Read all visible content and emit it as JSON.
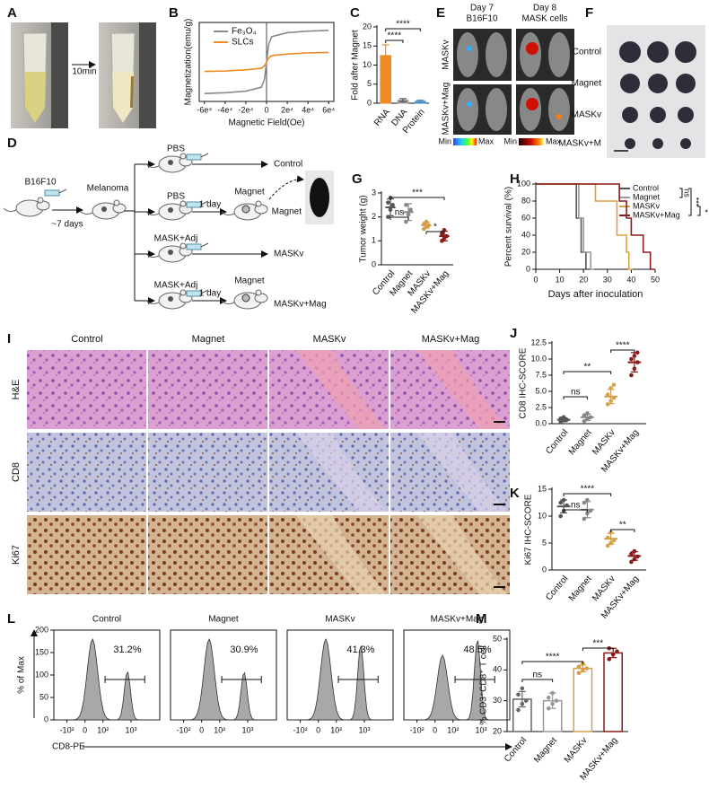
{
  "panel_letters": [
    "A",
    "B",
    "C",
    "D",
    "E",
    "F",
    "G",
    "H",
    "I",
    "J",
    "K",
    "L",
    "M"
  ],
  "panel_a": {
    "arrow_label": "10min"
  },
  "panel_d": {
    "start": "B16F10",
    "interval": "~7 days",
    "tumor": "Melanoma",
    "groups": [
      {
        "treatment": "PBS",
        "outcome": "Control"
      },
      {
        "treatment": "PBS",
        "delay": "1 day",
        "step": "Magnet",
        "outcome": "Magnet"
      },
      {
        "treatment": "MASK+Adj",
        "outcome": "MASKv"
      },
      {
        "treatment": "MASK+Adj",
        "delay": "1 day",
        "step": "Magnet",
        "outcome": "MASKv+Mag"
      }
    ]
  },
  "panel_e": {
    "columns": [
      [
        "Day 7",
        "B16F10"
      ],
      [
        "Day 8",
        "MASK cells"
      ]
    ],
    "rows": [
      "MASKv",
      "MASKv+Mag"
    ],
    "scale_labels": [
      "Min",
      "Max",
      "Min",
      "Max"
    ]
  },
  "panel_f": {
    "rows": [
      "Control",
      "Magnet",
      "MASKv",
      "MASKv+M"
    ]
  },
  "panel_i": {
    "columns": [
      "Control",
      "Magnet",
      "MASKv",
      "MASKv+Mag"
    ],
    "rows": [
      "H&E",
      "CD8",
      "Ki67"
    ]
  },
  "chart_data": [
    {
      "type": "line",
      "xlabel": "Magnetic Field(Oe)",
      "ylabel": "Magnetization(emu/g)",
      "legend": "upper left",
      "xlim": [
        -65000,
        65000
      ],
      "ylim": [
        -50,
        50
      ],
      "xticks": [
        {
          "value": -60000,
          "label": "-6e⁴"
        },
        {
          "value": -40000,
          "label": "-4e⁴"
        },
        {
          "value": -20000,
          "label": "-2e⁴"
        },
        0,
        {
          "value": 20000,
          "label": "2e⁴"
        },
        {
          "value": 40000,
          "label": "4e⁴"
        },
        {
          "value": 60000,
          "label": "6e⁴"
        }
      ],
      "x": [
        -60000,
        -40000,
        -20000,
        -5000,
        -2000,
        0,
        2000,
        5000,
        20000,
        40000,
        60000
      ],
      "series": [
        {
          "name": "Fe₃O₄",
          "color": "#8a8a8a",
          "values": [
            -40,
            -39,
            -37,
            -32,
            -22,
            0,
            22,
            32,
            37,
            39,
            40
          ]
        },
        {
          "name": "SLCs",
          "color": "#f08a24",
          "values": [
            -12,
            -11.5,
            -10,
            -8,
            -5,
            0,
            5,
            8,
            10,
            11.5,
            12
          ]
        }
      ]
    },
    {
      "type": "bar",
      "ylabel": "Fold after Magnet",
      "categories": [
        "RNA",
        "DNA",
        "Protein"
      ],
      "values": [
        12.5,
        0.8,
        0.5
      ],
      "errors": [
        2.8,
        0.4,
        0.3
      ],
      "colors": [
        "#f08a24",
        "#999999",
        "#4a90c8"
      ],
      "ylim": [
        0,
        20
      ],
      "yticks": [
        0,
        5,
        10,
        15,
        20
      ],
      "significance": [
        "****",
        "****"
      ]
    },
    {
      "type": "dot",
      "ylabel": "Tumor weight (g)",
      "categories": [
        "Control",
        "Magnet",
        "MASKv",
        "MASKv+Mag"
      ],
      "values": [
        2.4,
        2.2,
        1.65,
        1.2
      ],
      "errors": [
        0.35,
        0.35,
        0.12,
        0.2
      ],
      "points": [
        [
          2.0,
          2.3,
          2.5,
          2.6,
          2.8
        ],
        [
          1.8,
          2.1,
          2.3,
          2.5
        ],
        [
          1.5,
          1.6,
          1.65,
          1.7,
          1.8
        ],
        [
          1.0,
          1.1,
          1.2,
          1.3,
          1.45
        ]
      ],
      "colors": [
        "#555555",
        "#888888",
        "#d4a04a",
        "#8b1a1a"
      ],
      "ylim": [
        0,
        3
      ],
      "yticks": [
        0,
        1,
        2,
        3
      ],
      "significance": [
        "ns",
        "***",
        "*"
      ]
    },
    {
      "type": "survival",
      "xlabel": "Days after inoculation",
      "ylabel": "Percent survival (%)",
      "legend": "upper right",
      "xlim": [
        0,
        50
      ],
      "xticks": [
        0,
        10,
        20,
        30,
        40,
        50
      ],
      "ylim": [
        0,
        100
      ],
      "yticks": [
        0,
        20,
        40,
        60,
        80,
        100
      ],
      "series": [
        {
          "name": "Control",
          "color": "#555555",
          "x": [
            0,
            17,
            19,
            21
          ],
          "values": [
            100,
            60,
            20,
            0
          ]
        },
        {
          "name": "Magnet",
          "color": "#999999",
          "x": [
            0,
            18,
            20,
            23
          ],
          "values": [
            100,
            60,
            20,
            0
          ]
        },
        {
          "name": "MASKv",
          "color": "#e0a040",
          "x": [
            0,
            25,
            34,
            38,
            39
          ],
          "values": [
            100,
            80,
            40,
            20,
            0
          ]
        },
        {
          "name": "MASKv+Mag",
          "color": "#8b1a1a",
          "x": [
            0,
            35,
            38,
            40,
            45,
            48
          ],
          "values": [
            100,
            80,
            60,
            40,
            20,
            0
          ]
        }
      ],
      "significance": [
        "ns",
        "***",
        "*"
      ]
    },
    {
      "type": "dot",
      "ylabel": "CD8 IHC-SCORE",
      "categories": [
        "Control",
        "Magnet",
        "MASKv",
        "MASKv+Mag"
      ],
      "values": [
        0.6,
        1.0,
        4.2,
        9.5
      ],
      "errors": [
        0.3,
        0.5,
        1.1,
        1.5
      ],
      "points": [
        [
          0.3,
          0.5,
          0.6,
          0.8,
          1.0
        ],
        [
          0.4,
          0.7,
          1.0,
          1.3,
          1.6
        ],
        [
          3.0,
          3.5,
          4.0,
          4.5,
          5.5,
          6.0
        ],
        [
          7.5,
          8.5,
          9.5,
          10,
          10.5,
          11
        ]
      ],
      "colors": [
        "#555555",
        "#888888",
        "#d4a04a",
        "#8b1a1a"
      ],
      "ylim": [
        0,
        12.5
      ],
      "yticks": [
        {
          "value": 0,
          "label": "0.0"
        },
        2.5,
        {
          "value": 5,
          "label": "5.0"
        },
        7.5,
        {
          "value": 10,
          "label": "10.0"
        },
        12.5
      ],
      "significance": [
        "ns",
        "**",
        "****"
      ]
    },
    {
      "type": "dot",
      "ylabel": "Ki67 IHC-SCORE",
      "categories": [
        "Control",
        "Magnet",
        "MASKv",
        "MASKv+Mag"
      ],
      "values": [
        11.8,
        11.2,
        5.8,
        2.6
      ],
      "errors": [
        1.2,
        1.5,
        1.0,
        0.8
      ],
      "points": [
        [
          10,
          11,
          12,
          12.5,
          13
        ],
        [
          9.5,
          10.5,
          11,
          12.5,
          13
        ],
        [
          4.5,
          5,
          5.5,
          6,
          7
        ],
        [
          1.5,
          2,
          2.5,
          3,
          3.5
        ]
      ],
      "colors": [
        "#555555",
        "#888888",
        "#d4a04a",
        "#8b1a1a"
      ],
      "ylim": [
        0,
        15
      ],
      "yticks": [
        0,
        5,
        10,
        15
      ],
      "significance": [
        "ns",
        "****",
        "**"
      ]
    },
    {
      "type": "flow",
      "titles": [
        "Control",
        "Magnet",
        "MASKv",
        "MASKv+Mag"
      ],
      "values": [
        31.2,
        30.9,
        41.3,
        48.5
      ],
      "value_labels": [
        "31.2%",
        "30.9%",
        "41.3%",
        "48.5%"
      ],
      "xlabel": "CD8-PE",
      "ylabel": "% of Max",
      "xlim": [
        -300,
        10000
      ],
      "xticks": [
        {
          "value": -100,
          "label": "-10²"
        },
        0,
        {
          "value": 100,
          "label": "10²"
        },
        {
          "value": 1000,
          "label": "10³"
        }
      ],
      "ylim": [
        0,
        200
      ],
      "yticks": [
        0,
        50,
        100,
        150,
        200
      ]
    },
    {
      "type": "bar",
      "hollow": true,
      "ylabel": "% CD3⁺CD8⁺ T cell",
      "categories": [
        "Control",
        "Magnet",
        "MASKv",
        "MASKv+Mag"
      ],
      "values": [
        30.5,
        30,
        40.5,
        45.5
      ],
      "errors": [
        2.5,
        2.5,
        1.1,
        1.5
      ],
      "points": [
        [
          27,
          29,
          30,
          32,
          34
        ],
        [
          27.5,
          29,
          30,
          31,
          32.5
        ],
        [
          39,
          40,
          40.5,
          41,
          42
        ],
        [
          43.5,
          45,
          46,
          47
        ]
      ],
      "colors": [
        "#666666",
        "#999999",
        "#d4a04a",
        "#8b1a1a"
      ],
      "ylim": [
        20,
        50
      ],
      "yticks": [
        20,
        30,
        40,
        50
      ],
      "significance": [
        "ns",
        "****",
        "***"
      ]
    }
  ]
}
